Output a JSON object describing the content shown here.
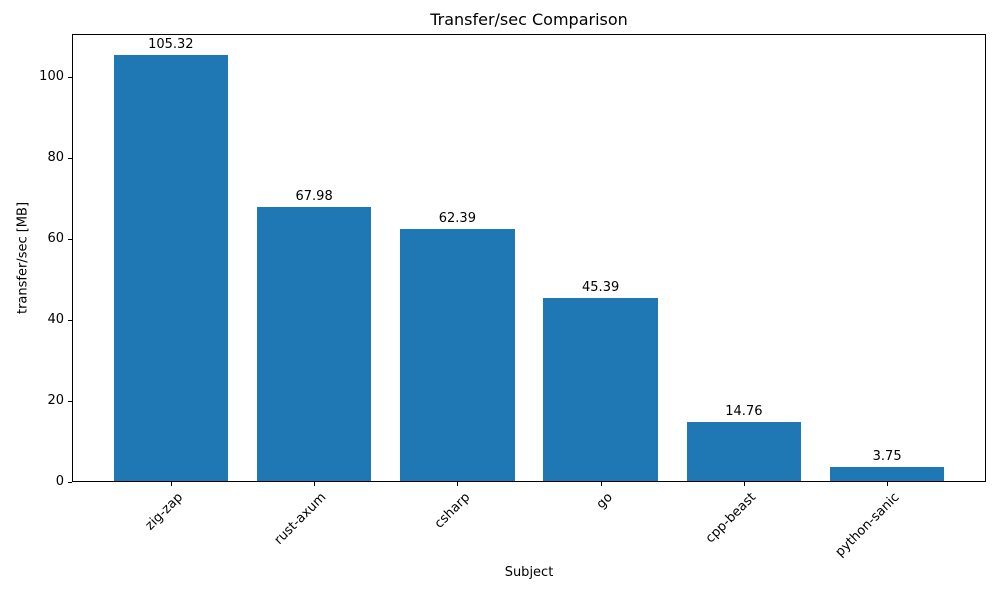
{
  "chart_data": {
    "type": "bar",
    "title": "Transfer/sec Comparison",
    "xlabel": "Subject",
    "ylabel": "transfer/sec [MB]",
    "categories": [
      "zig-zap",
      "rust-axum",
      "csharp",
      "go",
      "cpp-beast",
      "python-sanic"
    ],
    "values": [
      105.32,
      67.98,
      62.39,
      45.39,
      14.76,
      3.75
    ],
    "bar_labels": [
      "105.32",
      "67.98",
      "62.39",
      "45.39",
      "14.76",
      "3.75"
    ],
    "yticks": [
      0,
      20,
      40,
      60,
      80,
      100
    ],
    "ylim": [
      0,
      110.6
    ],
    "bar_color": "#1f77b4",
    "text_color": "#000000",
    "grid": false,
    "legend": "none",
    "x_tick_rotation_deg": 45
  }
}
